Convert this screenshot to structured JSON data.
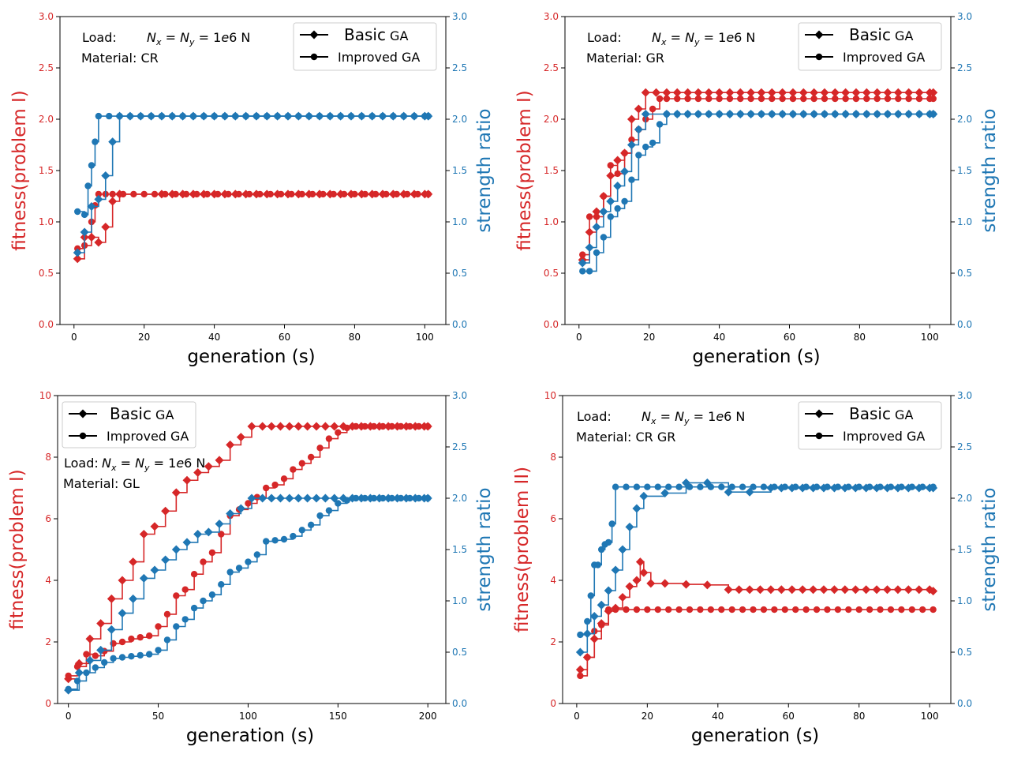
{
  "colors": {
    "fitness": "#d62728",
    "strength": "#1f77b4",
    "axis": "#000000"
  },
  "legend": {
    "basic_label": "Basic",
    "basic_suffix": "GA",
    "improved_label": "Improved GA"
  },
  "chart_data": [
    {
      "type": "line",
      "xlabel": "generation (s)",
      "ylabel_left": "fitness(problem I)",
      "ylabel_right": "strength ratio",
      "xlim": [
        -4,
        106
      ],
      "ylim_left": [
        0,
        3
      ],
      "ylim_right": [
        0,
        3
      ],
      "xticks": [
        0,
        20,
        40,
        60,
        80,
        100
      ],
      "xtick_labels": [
        "0",
        "20",
        "40",
        "60",
        "80",
        "100"
      ],
      "yticks_left": [
        0,
        0.5,
        1,
        1.5,
        2,
        2.5,
        3
      ],
      "ytick_labels_left": [
        "0.0",
        "0.5",
        "1.0",
        "1.5",
        "2.0",
        "2.5",
        "3.0"
      ],
      "yticks_right": [
        0,
        0.5,
        1,
        1.5,
        2,
        2.5,
        3
      ],
      "ytick_labels_right": [
        "0.0",
        "0.5",
        "1.0",
        "1.5",
        "2.0",
        "2.5",
        "3.0"
      ],
      "legend_position": "upper right",
      "annotation": {
        "load_prefix": "Load:",
        "load_eq": "N_x = N_y = 1e6 N",
        "material": "Material: CR"
      },
      "series": [
        {
          "name": "Basic GA fitness",
          "axis": "left",
          "color": "fitness",
          "marker": "diamond",
          "x": [
            1,
            3,
            5,
            7,
            9,
            11,
            13,
            25,
            101
          ],
          "y": [
            0.64,
            0.85,
            0.85,
            0.8,
            0.95,
            1.2,
            1.27,
            1.27,
            1.27
          ]
        },
        {
          "name": "Improved GA fitness",
          "axis": "left",
          "color": "fitness",
          "marker": "circle",
          "x": [
            1,
            3,
            5,
            6,
            7,
            9,
            11,
            101
          ],
          "y": [
            0.74,
            0.77,
            1.0,
            1.16,
            1.27,
            1.27,
            1.27,
            1.27
          ]
        },
        {
          "name": "Basic GA strength",
          "axis": "right",
          "color": "strength",
          "marker": "diamond",
          "x": [
            1,
            3,
            5,
            7,
            9,
            11,
            13,
            101
          ],
          "y": [
            0.7,
            0.9,
            1.15,
            1.22,
            1.45,
            1.78,
            2.03,
            2.03
          ]
        },
        {
          "name": "Improved GA strength",
          "axis": "right",
          "color": "strength",
          "marker": "circle",
          "x": [
            1,
            3,
            4,
            5,
            6,
            7,
            101
          ],
          "y": [
            1.1,
            1.07,
            1.35,
            1.55,
            1.78,
            2.03,
            2.03
          ]
        }
      ]
    },
    {
      "type": "line",
      "xlabel": "generation (s)",
      "ylabel_left": "fitness(problem I)",
      "ylabel_right": "strength ratio",
      "xlim": [
        -4,
        106
      ],
      "ylim_left": [
        0,
        3
      ],
      "ylim_right": [
        0,
        3
      ],
      "xticks": [
        0,
        20,
        40,
        60,
        80,
        100
      ],
      "xtick_labels": [
        "0",
        "20",
        "40",
        "60",
        "80",
        "100"
      ],
      "yticks_left": [
        0,
        0.5,
        1,
        1.5,
        2,
        2.5,
        3
      ],
      "ytick_labels_left": [
        "0.0",
        "0.5",
        "1.0",
        "1.5",
        "2.0",
        "2.5",
        "3.0"
      ],
      "yticks_right": [
        0,
        0.5,
        1,
        1.5,
        2,
        2.5,
        3
      ],
      "ytick_labels_right": [
        "0.0",
        "0.5",
        "1.0",
        "1.5",
        "2.0",
        "2.5",
        "3.0"
      ],
      "legend_position": "upper right",
      "annotation": {
        "load_prefix": "Load:",
        "load_eq": "N_x = N_y = 1e6 N",
        "material": "Material: GR"
      },
      "series": [
        {
          "name": "Basic GA fitness",
          "axis": "left",
          "color": "fitness",
          "marker": "diamond",
          "x": [
            1,
            3,
            5,
            7,
            9,
            11,
            13,
            15,
            17,
            19,
            101
          ],
          "y": [
            0.63,
            0.9,
            1.1,
            1.25,
            1.45,
            1.6,
            1.67,
            2.0,
            2.1,
            2.26,
            2.26
          ]
        },
        {
          "name": "Improved GA fitness",
          "axis": "left",
          "color": "fitness",
          "marker": "circle",
          "x": [
            1,
            3,
            5,
            7,
            9,
            11,
            13,
            15,
            17,
            19,
            21,
            23,
            25,
            101
          ],
          "y": [
            0.68,
            1.05,
            1.05,
            1.25,
            1.55,
            1.47,
            1.67,
            1.8,
            1.9,
            2.0,
            2.1,
            2.2,
            2.2,
            2.2
          ]
        },
        {
          "name": "Basic GA strength",
          "axis": "right",
          "color": "strength",
          "marker": "diamond",
          "x": [
            1,
            3,
            5,
            7,
            9,
            11,
            13,
            15,
            17,
            19,
            25,
            101
          ],
          "y": [
            0.6,
            0.75,
            0.95,
            1.1,
            1.2,
            1.35,
            1.49,
            1.75,
            1.9,
            2.05,
            2.05,
            2.05
          ]
        },
        {
          "name": "Improved GA strength",
          "axis": "right",
          "color": "strength",
          "marker": "circle",
          "x": [
            1,
            3,
            5,
            7,
            9,
            11,
            13,
            15,
            17,
            19,
            21,
            23,
            25,
            101
          ],
          "y": [
            0.52,
            0.52,
            0.7,
            0.85,
            1.05,
            1.13,
            1.2,
            1.41,
            1.65,
            1.73,
            1.77,
            1.95,
            2.05,
            2.05
          ]
        }
      ]
    },
    {
      "type": "line",
      "xlabel": "generation (s)",
      "ylabel_left": "fitness(problem I)",
      "ylabel_right": "strength ratio",
      "xlim": [
        -6,
        210
      ],
      "ylim_left": [
        0,
        10
      ],
      "ylim_right": [
        0,
        3
      ],
      "xticks": [
        0,
        50,
        100,
        150,
        200
      ],
      "xtick_labels": [
        "0",
        "50",
        "100",
        "150",
        "200"
      ],
      "yticks_left": [
        0,
        2,
        4,
        6,
        8,
        10
      ],
      "ytick_labels_left": [
        "0",
        "2",
        "4",
        "6",
        "8",
        "10"
      ],
      "yticks_right": [
        0,
        0.5,
        1,
        1.5,
        2,
        2.5,
        3
      ],
      "ytick_labels_right": [
        "0.0",
        "0.5",
        "1.0",
        "1.5",
        "2.0",
        "2.5",
        "3.0"
      ],
      "legend_position": "upper left",
      "annotation": {
        "load_prefix": "Load:",
        "load_eq": "N_x = N_y = 1e6 N",
        "material": "Material: GL"
      },
      "series": [
        {
          "name": "Basic GA fitness",
          "axis": "left",
          "color": "fitness",
          "marker": "diamond",
          "x": [
            0,
            6,
            12,
            18,
            24,
            30,
            36,
            42,
            48,
            54,
            60,
            66,
            72,
            78,
            84,
            90,
            96,
            102,
            108,
            200
          ],
          "y": [
            0.8,
            1.3,
            2.1,
            2.6,
            3.4,
            4.0,
            4.6,
            5.5,
            5.75,
            6.25,
            6.85,
            7.25,
            7.5,
            7.7,
            7.9,
            8.4,
            8.65,
            9.0,
            9.0,
            9.0
          ]
        },
        {
          "name": "Improved GA fitness",
          "axis": "left",
          "color": "fitness",
          "marker": "circle",
          "x": [
            0,
            5,
            10,
            15,
            20,
            25,
            30,
            35,
            40,
            45,
            50,
            55,
            60,
            65,
            70,
            75,
            80,
            85,
            90,
            95,
            100,
            105,
            110,
            115,
            120,
            125,
            130,
            135,
            140,
            145,
            150,
            155,
            160,
            200
          ],
          "y": [
            0.9,
            1.2,
            1.6,
            1.55,
            1.7,
            1.95,
            2.0,
            2.1,
            2.15,
            2.2,
            2.5,
            2.9,
            3.5,
            3.7,
            4.2,
            4.6,
            4.9,
            5.5,
            6.1,
            6.3,
            6.5,
            6.7,
            7.0,
            7.1,
            7.3,
            7.6,
            7.8,
            8.0,
            8.3,
            8.6,
            8.8,
            8.95,
            9.0,
            9.0
          ]
        },
        {
          "name": "Basic GA strength",
          "axis": "right",
          "color": "strength",
          "marker": "diamond",
          "x": [
            0,
            6,
            12,
            18,
            24,
            30,
            36,
            42,
            48,
            54,
            60,
            66,
            72,
            78,
            84,
            90,
            96,
            102,
            108,
            200
          ],
          "y": [
            0.13,
            0.3,
            0.42,
            0.52,
            0.72,
            0.88,
            1.02,
            1.22,
            1.3,
            1.4,
            1.5,
            1.57,
            1.65,
            1.67,
            1.75,
            1.85,
            1.9,
            2.0,
            2.0,
            2.0
          ]
        },
        {
          "name": "Improved GA strength",
          "axis": "right",
          "color": "strength",
          "marker": "circle",
          "x": [
            0,
            5,
            10,
            15,
            20,
            25,
            30,
            35,
            40,
            45,
            50,
            55,
            60,
            65,
            70,
            75,
            80,
            85,
            90,
            95,
            100,
            105,
            110,
            115,
            120,
            125,
            130,
            135,
            140,
            145,
            150,
            155,
            160,
            200
          ],
          "y": [
            0.14,
            0.22,
            0.3,
            0.35,
            0.4,
            0.44,
            0.45,
            0.46,
            0.47,
            0.48,
            0.52,
            0.62,
            0.75,
            0.82,
            0.93,
            1.0,
            1.06,
            1.16,
            1.28,
            1.32,
            1.38,
            1.45,
            1.58,
            1.59,
            1.6,
            1.63,
            1.69,
            1.74,
            1.83,
            1.88,
            1.95,
            1.98,
            2.0,
            2.0
          ]
        }
      ]
    },
    {
      "type": "line",
      "xlabel": "generation (s)",
      "ylabel_left": "fitness(problem II)",
      "ylabel_right": "strength ratio",
      "xlim": [
        -4,
        106
      ],
      "ylim_left": [
        0,
        10
      ],
      "ylim_right": [
        0,
        3
      ],
      "xticks": [
        0,
        20,
        40,
        60,
        80,
        100
      ],
      "xtick_labels": [
        "0",
        "20",
        "40",
        "60",
        "80",
        "100"
      ],
      "yticks_left": [
        0,
        2,
        4,
        6,
        8,
        10
      ],
      "ytick_labels_left": [
        "0",
        "2",
        "4",
        "6",
        "8",
        "10"
      ],
      "yticks_right": [
        0,
        0.5,
        1,
        1.5,
        2,
        2.5,
        3
      ],
      "ytick_labels_right": [
        "0.0",
        "0.5",
        "1.0",
        "1.5",
        "2.0",
        "2.5",
        "3.0"
      ],
      "legend_position": "upper right",
      "annotation": {
        "load_prefix": "Load:",
        "load_eq": "N_x = N_y = 1e6 N",
        "material": "Material: CR GR"
      },
      "series": [
        {
          "name": "Basic GA fitness",
          "axis": "left",
          "color": "fitness",
          "marker": "diamond",
          "x": [
            1,
            3,
            5,
            7,
            9,
            11,
            13,
            15,
            17,
            18,
            19,
            21,
            25,
            31,
            37,
            43,
            101
          ],
          "y": [
            1.1,
            1.5,
            2.1,
            2.6,
            3.0,
            3.1,
            3.45,
            3.8,
            4.0,
            4.6,
            4.25,
            3.9,
            3.9,
            3.87,
            3.85,
            3.7,
            3.65
          ]
        },
        {
          "name": "Improved GA fitness",
          "axis": "left",
          "color": "fitness",
          "marker": "circle",
          "x": [
            1,
            3,
            5,
            7,
            9,
            11,
            101
          ],
          "y": [
            0.9,
            1.5,
            2.35,
            2.55,
            3.05,
            3.05,
            3.05
          ]
        },
        {
          "name": "Basic GA strength",
          "axis": "right",
          "color": "strength",
          "marker": "diamond",
          "x": [
            1,
            3,
            5,
            7,
            9,
            11,
            13,
            15,
            17,
            19,
            25,
            31,
            37,
            43,
            49,
            55,
            101
          ],
          "y": [
            0.5,
            0.68,
            0.85,
            0.96,
            1.1,
            1.3,
            1.5,
            1.72,
            1.9,
            2.02,
            2.05,
            2.15,
            2.15,
            2.06,
            2.06,
            2.1,
            2.1
          ]
        },
        {
          "name": "Improved GA strength",
          "axis": "right",
          "color": "strength",
          "marker": "circle",
          "x": [
            1,
            3,
            4,
            5,
            6,
            7,
            8,
            9,
            10,
            11,
            101
          ],
          "y": [
            0.67,
            0.8,
            1.05,
            1.35,
            1.35,
            1.5,
            1.55,
            1.57,
            1.75,
            2.11,
            2.11
          ]
        }
      ]
    }
  ]
}
